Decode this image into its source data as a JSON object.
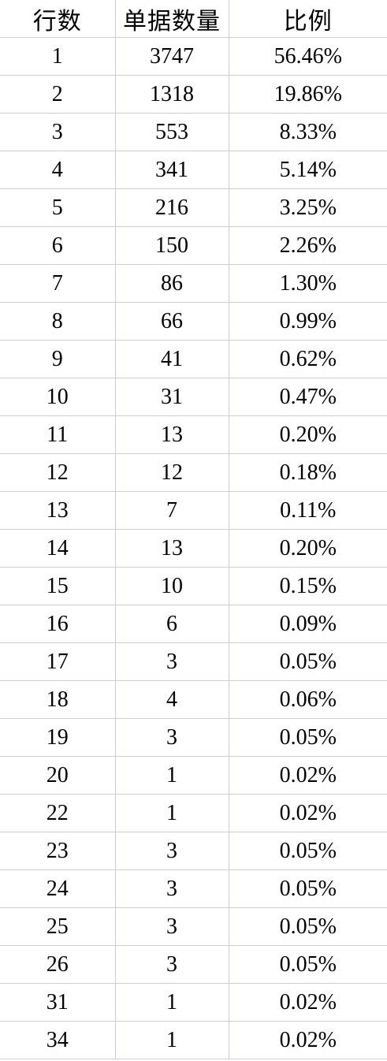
{
  "table": {
    "headers": [
      "行数",
      "单据数量",
      "比例"
    ],
    "rows": [
      [
        "1",
        "3747",
        "56.46%"
      ],
      [
        "2",
        "1318",
        "19.86%"
      ],
      [
        "3",
        "553",
        "8.33%"
      ],
      [
        "4",
        "341",
        "5.14%"
      ],
      [
        "5",
        "216",
        "3.25%"
      ],
      [
        "6",
        "150",
        "2.26%"
      ],
      [
        "7",
        "86",
        "1.30%"
      ],
      [
        "8",
        "66",
        "0.99%"
      ],
      [
        "9",
        "41",
        "0.62%"
      ],
      [
        "10",
        "31",
        "0.47%"
      ],
      [
        "11",
        "13",
        "0.20%"
      ],
      [
        "12",
        "12",
        "0.18%"
      ],
      [
        "13",
        "7",
        "0.11%"
      ],
      [
        "14",
        "13",
        "0.20%"
      ],
      [
        "15",
        "10",
        "0.15%"
      ],
      [
        "16",
        "6",
        "0.09%"
      ],
      [
        "17",
        "3",
        "0.05%"
      ],
      [
        "18",
        "4",
        "0.06%"
      ],
      [
        "19",
        "3",
        "0.05%"
      ],
      [
        "20",
        "1",
        "0.02%"
      ],
      [
        "22",
        "1",
        "0.02%"
      ],
      [
        "23",
        "3",
        "0.05%"
      ],
      [
        "24",
        "3",
        "0.05%"
      ],
      [
        "25",
        "3",
        "0.05%"
      ],
      [
        "26",
        "3",
        "0.05%"
      ],
      [
        "31",
        "1",
        "0.02%"
      ],
      [
        "34",
        "1",
        "0.02%"
      ]
    ]
  },
  "colors": {
    "gridline": "#c9ced8",
    "text": "#000000",
    "background": "#ffffff"
  }
}
